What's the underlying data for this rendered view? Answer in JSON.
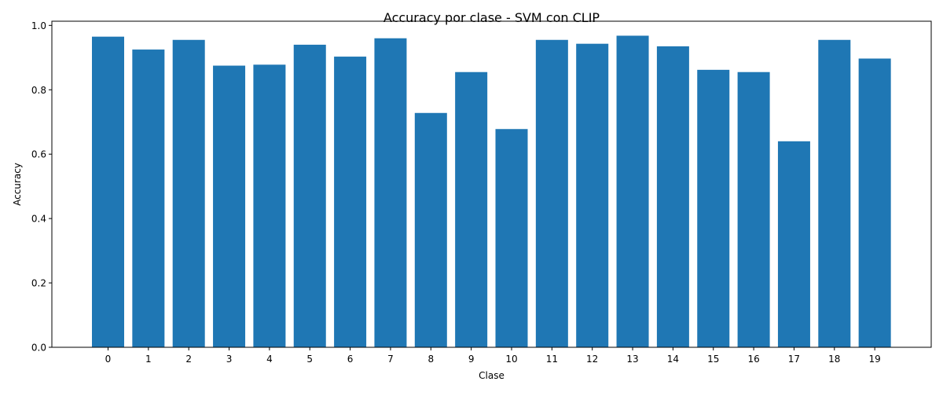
{
  "chart_data": {
    "type": "bar",
    "title": "Accuracy por clase - SVM con CLIP",
    "xlabel": "Clase",
    "ylabel": "Accuracy",
    "categories": [
      "0",
      "1",
      "2",
      "3",
      "4",
      "5",
      "6",
      "7",
      "8",
      "9",
      "10",
      "11",
      "12",
      "13",
      "14",
      "15",
      "16",
      "17",
      "18",
      "19"
    ],
    "values": [
      0.965,
      0.925,
      0.955,
      0.875,
      0.878,
      0.94,
      0.903,
      0.96,
      0.728,
      0.855,
      0.678,
      0.955,
      0.943,
      0.968,
      0.935,
      0.862,
      0.855,
      0.64,
      0.955,
      0.897
    ],
    "yticks": [
      "0.0",
      "0.2",
      "0.4",
      "0.6",
      "0.8",
      "1.0"
    ],
    "ylim": [
      0,
      1.013
    ],
    "grid": false,
    "legend": false,
    "bar_color": "#1f77b4"
  }
}
